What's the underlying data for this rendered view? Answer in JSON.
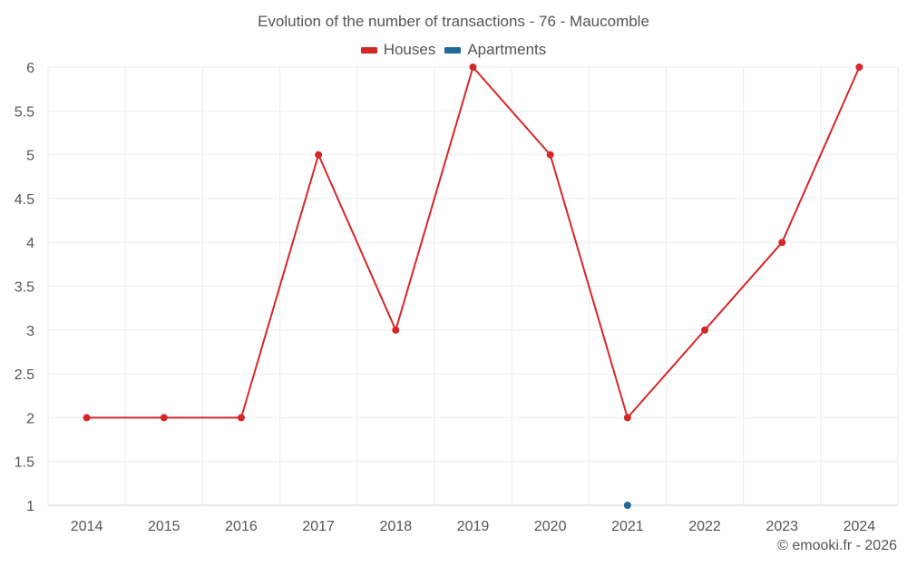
{
  "chart_data": {
    "type": "line",
    "title": "Evolution of the number of transactions - 76 - Maucomble",
    "categories": [
      "2014",
      "2015",
      "2016",
      "2017",
      "2018",
      "2019",
      "2020",
      "2021",
      "2022",
      "2023",
      "2024"
    ],
    "series": [
      {
        "name": "Houses",
        "color": "#d62728",
        "values": [
          2,
          2,
          2,
          5,
          3,
          6,
          5,
          2,
          3,
          4,
          6
        ]
      },
      {
        "name": "Apartments",
        "color": "#1f6a99",
        "values": [
          null,
          null,
          null,
          null,
          null,
          null,
          null,
          1,
          null,
          null,
          null
        ]
      }
    ],
    "ylim": [
      1,
      6
    ],
    "yticks": [
      "1",
      "1.5",
      "2",
      "2.5",
      "3",
      "3.5",
      "4",
      "4.5",
      "5",
      "5.5",
      "6"
    ],
    "grid": true,
    "legend_position": "top-center",
    "xlabel": "",
    "ylabel": ""
  },
  "credit": "© emooki.fr - 2026"
}
